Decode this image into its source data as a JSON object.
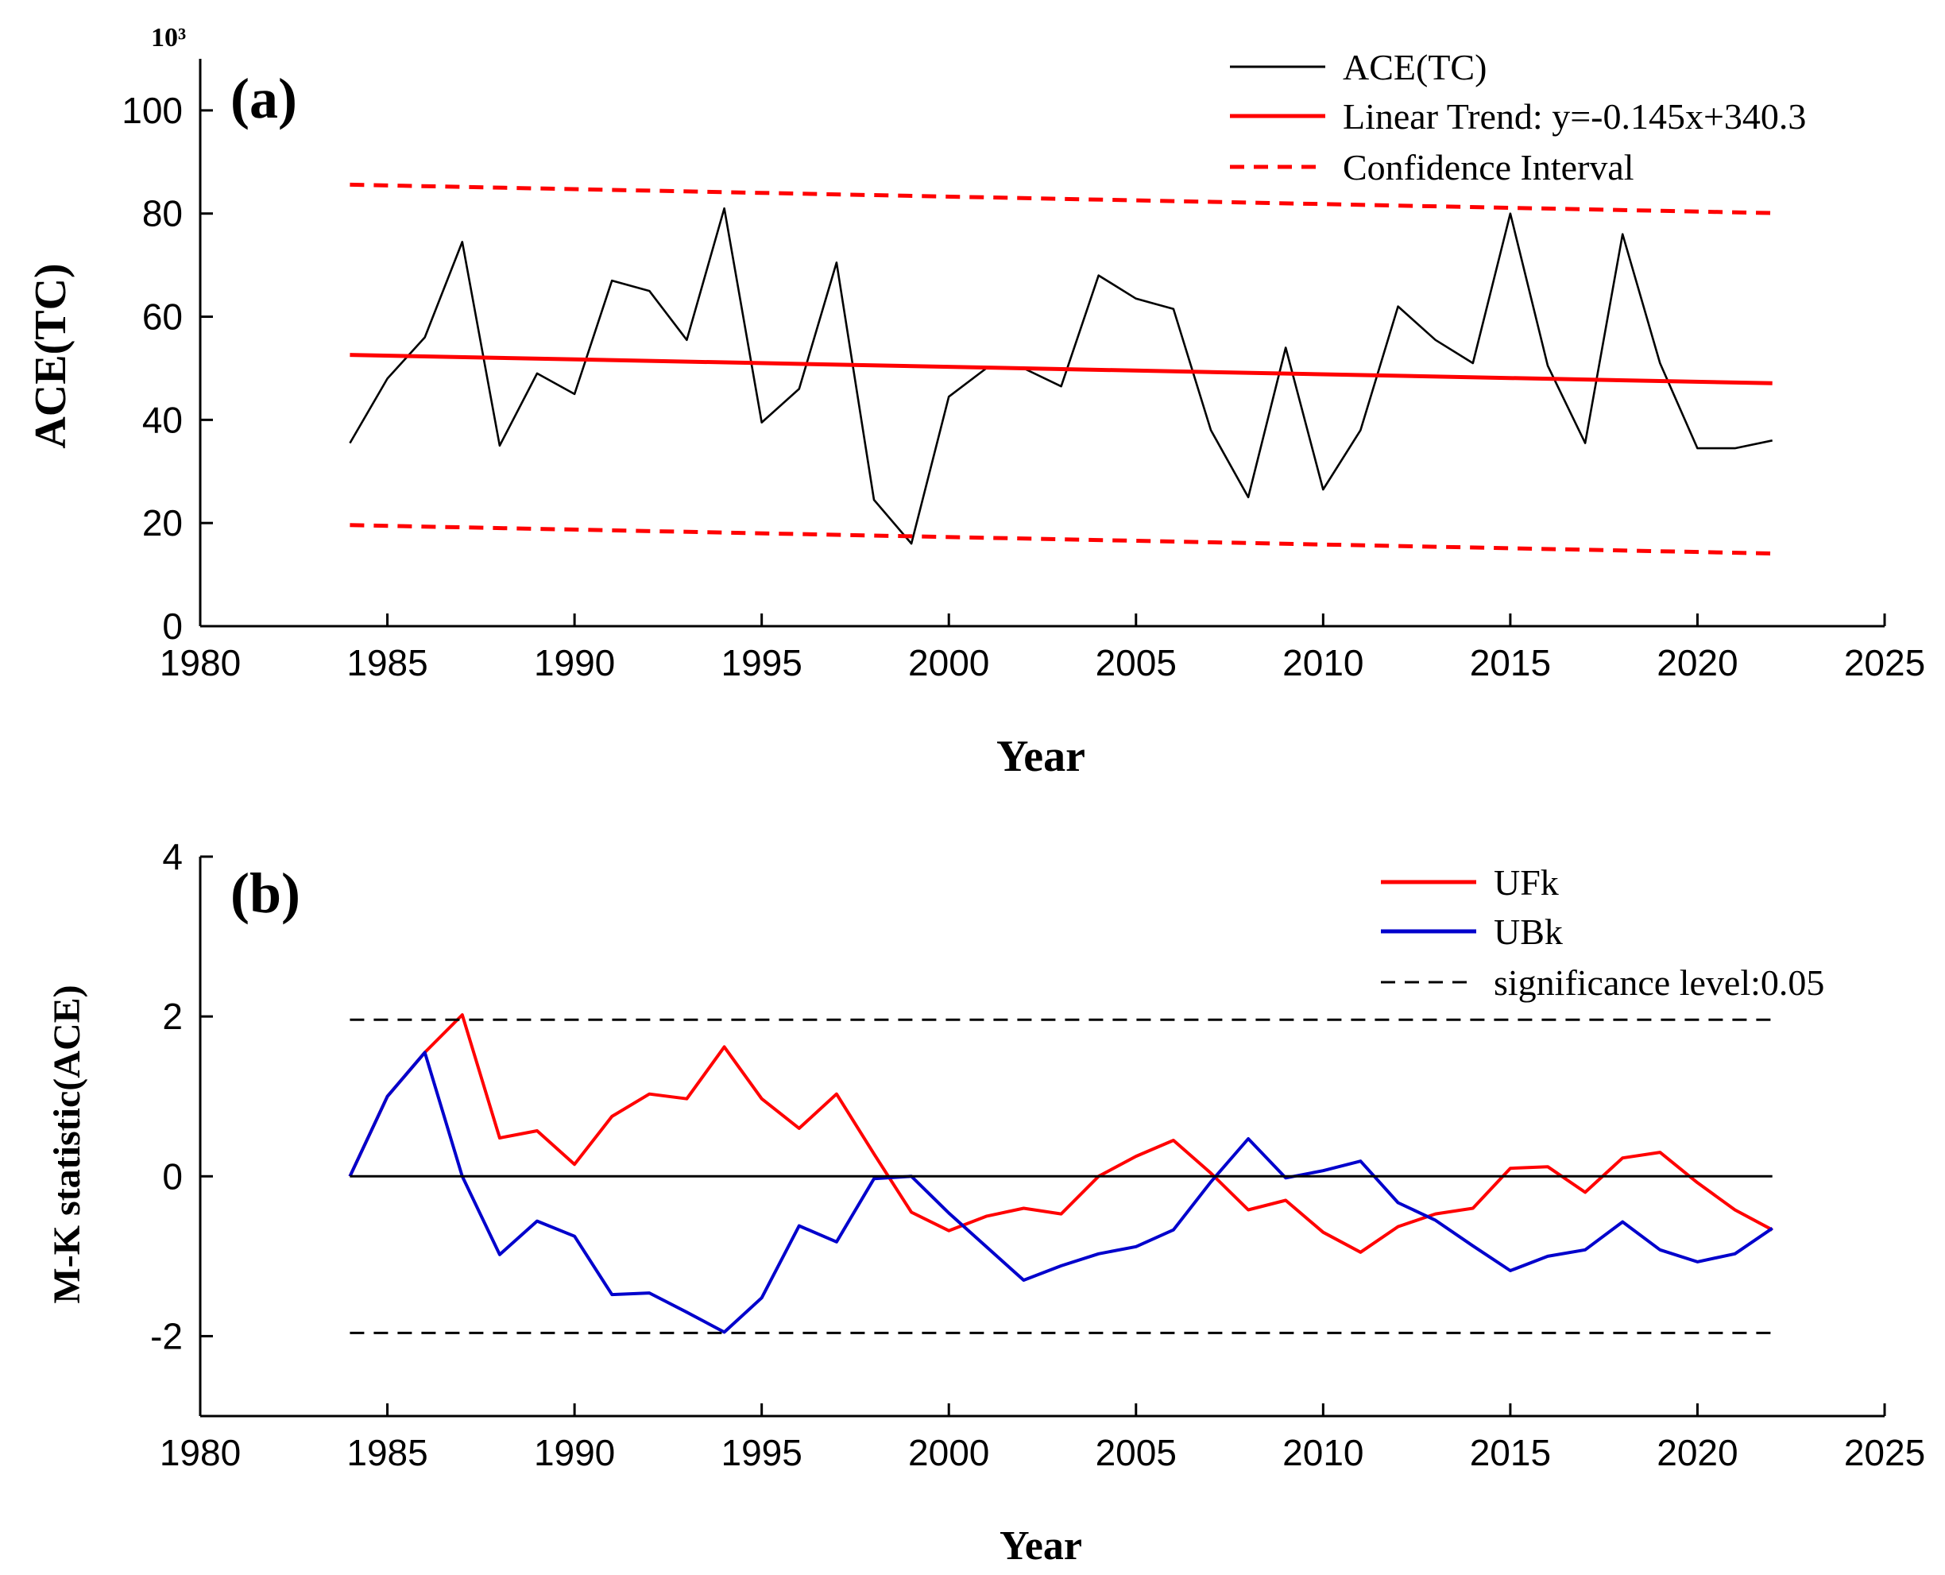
{
  "colors": {
    "ace": "#000000",
    "trend": "#ff0000",
    "ufk": "#ff0000",
    "ubk": "#0000cc",
    "sig": "#000000",
    "axis": "#000000"
  },
  "chart_data": [
    {
      "type": "line",
      "panel_label": "(a)",
      "exponent_label": "10³",
      "xlabel": "Year",
      "ylabel": "ACE(TC)",
      "xlim": [
        1980,
        2025
      ],
      "ylim": [
        0,
        110
      ],
      "xticks": [
        1980,
        1985,
        1990,
        1995,
        2000,
        2005,
        2010,
        2015,
        2020,
        2025
      ],
      "yticks": [
        0,
        20,
        40,
        60,
        80,
        100
      ],
      "x": [
        1984,
        1985,
        1986,
        1987,
        1988,
        1989,
        1990,
        1991,
        1992,
        1993,
        1994,
        1995,
        1996,
        1997,
        1998,
        1999,
        2000,
        2001,
        2002,
        2003,
        2004,
        2005,
        2006,
        2007,
        2008,
        2009,
        2010,
        2011,
        2012,
        2013,
        2014,
        2015,
        2016,
        2017,
        2018,
        2019,
        2020,
        2021,
        2022
      ],
      "series": [
        {
          "name": "ACE(TC)",
          "style": "solid",
          "values": [
            35.5,
            48,
            56,
            74.5,
            35,
            49,
            45,
            67,
            65,
            55.5,
            81,
            39.5,
            46,
            70.5,
            24.5,
            16,
            44.5,
            50,
            50,
            46.5,
            68,
            63.5,
            61.5,
            38,
            25,
            54,
            26.5,
            38,
            62,
            55.5,
            51,
            80,
            50.5,
            35.5,
            76,
            51,
            34.5,
            34.5,
            36
          ]
        },
        {
          "name": "Linear Trend: y=-0.145x+340.3",
          "style": "solid",
          "x": [
            1984,
            2022
          ],
          "values": [
            52.6,
            47.1
          ]
        },
        {
          "name": "Confidence Interval",
          "style": "dashed",
          "x": [
            1984,
            2022
          ],
          "values": [
            85.6,
            80.1
          ]
        },
        {
          "name": "Confidence Interval (lower)",
          "style": "dashed",
          "legend": false,
          "x": [
            1984,
            2022
          ],
          "values": [
            19.6,
            14.1
          ]
        }
      ],
      "legend": [
        "ACE(TC)",
        "Linear Trend: y=-0.145x+340.3",
        "Confidence Interval"
      ],
      "legend_position": "top-right"
    },
    {
      "type": "line",
      "panel_label": "(b)",
      "xlabel": "Year",
      "ylabel": "M-K statistic(ACE)",
      "xlim": [
        1980,
        2025
      ],
      "ylim": [
        -3,
        4
      ],
      "xticks": [
        1980,
        1985,
        1990,
        1995,
        2000,
        2005,
        2010,
        2015,
        2020,
        2025
      ],
      "yticks": [
        -2,
        0,
        2,
        4
      ],
      "x": [
        1984,
        1985,
        1986,
        1987,
        1988,
        1989,
        1990,
        1991,
        1992,
        1993,
        1994,
        1995,
        1996,
        1997,
        1998,
        1999,
        2000,
        2001,
        2002,
        2003,
        2004,
        2005,
        2006,
        2007,
        2008,
        2009,
        2010,
        2011,
        2012,
        2013,
        2014,
        2015,
        2016,
        2017,
        2018,
        2019,
        2020,
        2021,
        2022
      ],
      "series": [
        {
          "name": "UFk",
          "style": "solid",
          "values": [
            0,
            1.0,
            1.55,
            2.02,
            0.48,
            0.57,
            0.15,
            0.75,
            1.03,
            0.97,
            1.62,
            0.97,
            0.6,
            1.03,
            0.28,
            -0.45,
            -0.68,
            -0.5,
            -0.4,
            -0.47,
            0.0,
            0.25,
            0.45,
            0.04,
            -0.42,
            -0.3,
            -0.7,
            -0.95,
            -0.63,
            -0.47,
            -0.4,
            0.1,
            0.12,
            -0.2,
            0.23,
            0.3,
            -0.08,
            -0.42,
            -0.67
          ]
        },
        {
          "name": "UBk",
          "style": "solid",
          "values": [
            0,
            1.0,
            1.55,
            0.0,
            -0.98,
            -0.56,
            -0.75,
            -1.48,
            -1.46,
            -1.7,
            -1.95,
            -1.52,
            -0.62,
            -0.82,
            -0.03,
            0.0,
            -0.46,
            -0.88,
            -1.3,
            -1.12,
            -0.97,
            -0.88,
            -0.67,
            -0.07,
            0.47,
            -0.02,
            0.07,
            0.19,
            -0.33,
            -0.55,
            -0.87,
            -1.18,
            -1.0,
            -0.92,
            -0.57,
            -0.92,
            -1.07,
            -0.97,
            -0.65
          ]
        },
        {
          "name": "significance level:0.05",
          "style": "dashed",
          "x": [
            1984,
            2022
          ],
          "values": [
            1.96,
            1.96
          ]
        },
        {
          "name": "significance level (lower)",
          "style": "dashed",
          "legend": false,
          "x": [
            1984,
            2022
          ],
          "values": [
            -1.96,
            -1.96
          ]
        },
        {
          "name": "zero line",
          "style": "solid",
          "legend": false,
          "x": [
            1984,
            2022
          ],
          "values": [
            0,
            0
          ]
        }
      ],
      "legend": [
        "UFk",
        "UBk",
        "significance level:0.05"
      ],
      "legend_position": "top-right"
    }
  ]
}
